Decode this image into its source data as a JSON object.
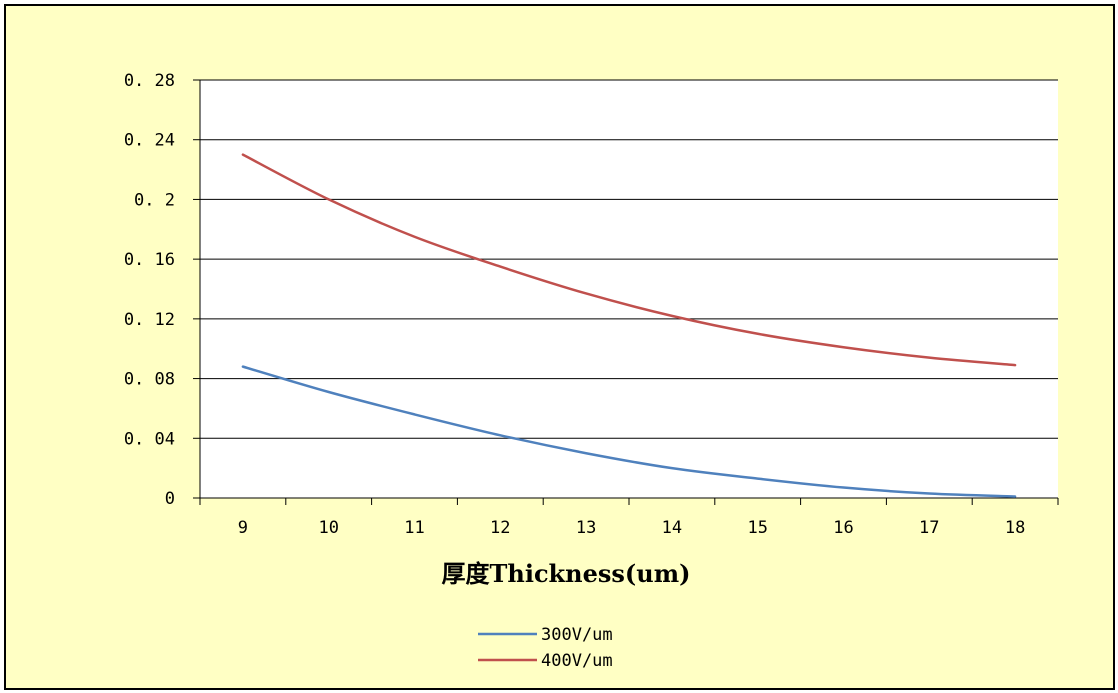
{
  "chart_data": {
    "type": "line",
    "title": "",
    "xlabel": "厚度Thickness(um)",
    "ylabel": "",
    "x": [
      9,
      10,
      11,
      12,
      13,
      14,
      15,
      16,
      17,
      18
    ],
    "xlim": [
      9,
      18
    ],
    "ylim": [
      0,
      0.28
    ],
    "yticks": [
      0,
      0.04,
      0.08,
      0.12,
      0.16,
      0.2,
      0.24,
      0.28
    ],
    "ytick_labels": [
      "0",
      "0. 04",
      "0. 08",
      "0. 12",
      "0. 16",
      "0. 2",
      "0. 24",
      "0. 28"
    ],
    "xtick_labels": [
      "9",
      "10",
      "11",
      "12",
      "13",
      "14",
      "15",
      "16",
      "17",
      "18"
    ],
    "grid": true,
    "legend_position": "bottom",
    "series": [
      {
        "name": "300V/um",
        "color": "#4f81bd",
        "values": [
          0.088,
          0.071,
          0.056,
          0.042,
          0.03,
          0.02,
          0.013,
          0.007,
          0.003,
          0.001
        ]
      },
      {
        "name": "400V/um",
        "color": "#c0504d",
        "values": [
          0.23,
          0.2,
          0.175,
          0.155,
          0.137,
          0.122,
          0.11,
          0.101,
          0.094,
          0.089
        ]
      }
    ],
    "plot_background": "#ffffff",
    "chart_background": "#ffffc4",
    "gridline_color": "#000000"
  }
}
